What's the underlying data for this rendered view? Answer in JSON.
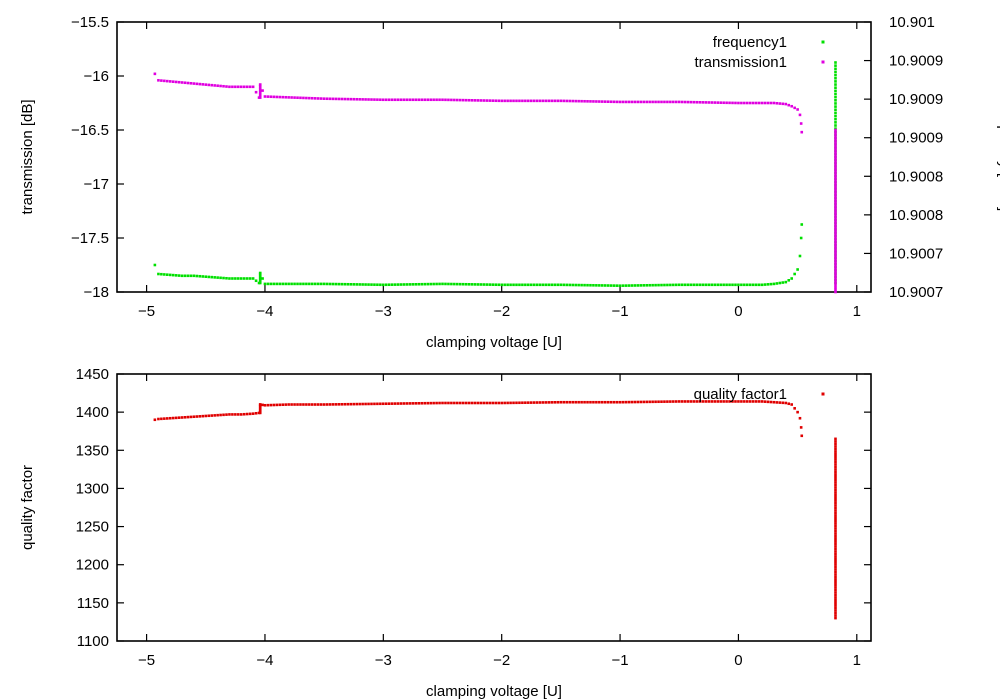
{
  "chart_data": [
    {
      "type": "scatter",
      "xlabel": "clamping voltage [U]",
      "ylabel": "transmission [dB]",
      "y2label": "frequency [GHz]",
      "xlim": [
        -5.25,
        1.12
      ],
      "ylim": [
        -18,
        -15.5
      ],
      "y2lim": [
        10.9007,
        10.901
      ],
      "xticks": [
        -5,
        -4,
        -3,
        -2,
        -1,
        0,
        1
      ],
      "xtick_labels": [
        "−5",
        "−4",
        "−3",
        "−2",
        "−1",
        "0",
        "1"
      ],
      "yticks": [
        -18,
        -17.5,
        -17,
        -16.5,
        -16,
        -15.5
      ],
      "ytick_labels": [
        "−18",
        "−17.5",
        "−17",
        "−16.5",
        "−16",
        "−15.5"
      ],
      "y2tick_labels": [
        "10.9007",
        "10.9007",
        "10.9008",
        "10.9008",
        "10.9009",
        "10.9009",
        "10.9009",
        "10.901"
      ],
      "grid": false,
      "legend_position": "top-right",
      "series": [
        {
          "name": "frequency1",
          "color": "#00e000",
          "axis": "y2",
          "x": [
            -4.93,
            -4.9,
            -4.8,
            -4.7,
            -4.6,
            -4.5,
            -4.4,
            -4.3,
            -4.1,
            -4.05,
            -4.04,
            -4.0,
            -3.5,
            -3.0,
            -2.5,
            -2.0,
            -1.5,
            -1.0,
            -0.5,
            0.0,
            0.2,
            0.3,
            0.4,
            0.45,
            0.5,
            0.52,
            0.53,
            0.535,
            0.82,
            0.82,
            0.82,
            0.82
          ],
          "y": [
            10.90073,
            10.90072,
            10.900719,
            10.900718,
            10.900718,
            10.900717,
            10.900716,
            10.900715,
            10.900715,
            10.90071,
            10.900721,
            10.900709,
            10.900709,
            10.900708,
            10.900709,
            10.900708,
            10.900708,
            10.900707,
            10.900708,
            10.900708,
            10.900708,
            10.900709,
            10.900711,
            10.900715,
            10.900725,
            10.90074,
            10.90076,
            10.900775,
            10.90071,
            10.9008,
            10.9009,
            10.900955
          ]
        },
        {
          "name": "transmission1",
          "color": "#e000e0",
          "axis": "y",
          "x": [
            -4.93,
            -4.9,
            -4.8,
            -4.7,
            -4.6,
            -4.5,
            -4.4,
            -4.3,
            -4.1,
            -4.05,
            -4.04,
            -4.0,
            -3.5,
            -3.0,
            -2.5,
            -2.0,
            -1.5,
            -1.0,
            -0.5,
            0.0,
            0.2,
            0.3,
            0.4,
            0.45,
            0.5,
            0.52,
            0.53,
            0.535,
            0.82,
            0.82,
            0.82,
            0.82
          ],
          "y": [
            -15.98,
            -16.04,
            -16.05,
            -16.06,
            -16.07,
            -16.08,
            -16.09,
            -16.1,
            -16.1,
            -16.2,
            -16.08,
            -16.19,
            -16.21,
            -16.22,
            -16.22,
            -16.23,
            -16.23,
            -16.24,
            -16.24,
            -16.25,
            -16.25,
            -16.25,
            -16.26,
            -16.28,
            -16.31,
            -16.36,
            -16.44,
            -16.52,
            -18.0,
            -17.4,
            -16.8,
            -16.5
          ]
        }
      ]
    },
    {
      "type": "scatter",
      "xlabel": "clamping voltage [U]",
      "ylabel": "quality factor",
      "xlim": [
        -5.25,
        1.12
      ],
      "ylim": [
        1100,
        1450
      ],
      "xticks": [
        -5,
        -4,
        -3,
        -2,
        -1,
        0,
        1
      ],
      "xtick_labels": [
        "−5",
        "−4",
        "−3",
        "−2",
        "−1",
        "0",
        "1"
      ],
      "yticks": [
        1100,
        1150,
        1200,
        1250,
        1300,
        1350,
        1400,
        1450
      ],
      "ytick_labels": [
        "1100",
        "1150",
        "1200",
        "1250",
        "1300",
        "1350",
        "1400",
        "1450"
      ],
      "grid": false,
      "legend_position": "top-right",
      "series": [
        {
          "name": "quality factor1",
          "color": "#e00000",
          "x": [
            -4.93,
            -4.9,
            -4.8,
            -4.7,
            -4.6,
            -4.5,
            -4.4,
            -4.3,
            -4.2,
            -4.1,
            -4.05,
            -4.04,
            -4.0,
            -3.8,
            -3.5,
            -3.0,
            -2.5,
            -2.0,
            -1.5,
            -1.0,
            -0.5,
            0.0,
            0.2,
            0.3,
            0.4,
            0.45,
            0.5,
            0.52,
            0.53,
            0.535,
            0.82,
            0.82,
            0.82,
            0.82,
            0.82
          ],
          "y": [
            1390,
            1391,
            1392,
            1393,
            1394,
            1395,
            1396,
            1397,
            1397,
            1398,
            1399,
            1410,
            1409,
            1410,
            1410,
            1411,
            1412,
            1412,
            1413,
            1413,
            1414,
            1414,
            1414,
            1413,
            1412,
            1410,
            1400,
            1392,
            1380,
            1369,
            1365,
            1300,
            1250,
            1180,
            1130
          ]
        }
      ]
    }
  ]
}
